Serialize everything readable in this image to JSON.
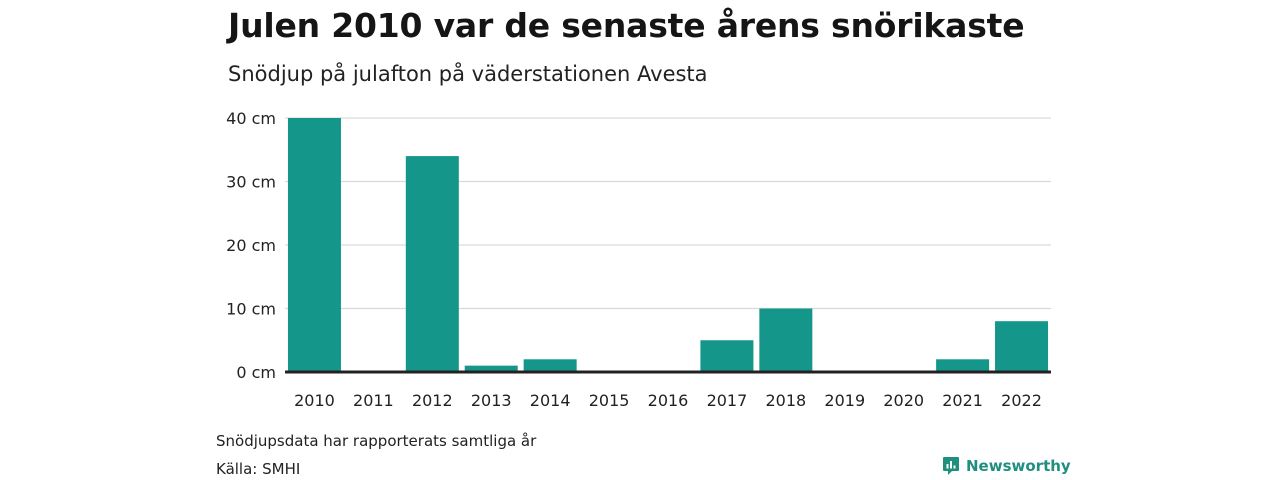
{
  "title": "Julen 2010 var de senaste årens snörikaste",
  "subtitle": "Snödjup på julafton på väderstationen Avesta",
  "note": "Snödjupsdata har rapporterats samtliga år",
  "source": "Källa: SMHI",
  "brand": "Newsworthy",
  "colors": {
    "bar": "#14968a",
    "grid": "#d9d9d9",
    "axis": "#222222",
    "brand": "#1f8f80"
  },
  "brand_icon": "newsworthy-logo-icon",
  "chart_data": {
    "type": "bar",
    "categories": [
      "2010",
      "2011",
      "2012",
      "2013",
      "2014",
      "2015",
      "2016",
      "2017",
      "2018",
      "2019",
      "2020",
      "2021",
      "2022"
    ],
    "values": [
      40,
      0,
      34,
      1,
      2,
      0,
      0,
      5,
      10,
      0,
      0,
      2,
      8
    ],
    "ylim": [
      0,
      40
    ],
    "yticks": [
      0,
      10,
      20,
      30,
      40
    ],
    "ytick_labels": [
      "0 cm",
      "10 cm",
      "20 cm",
      "30 cm",
      "40 cm"
    ],
    "xlabel": "",
    "ylabel": "",
    "grid": true
  }
}
